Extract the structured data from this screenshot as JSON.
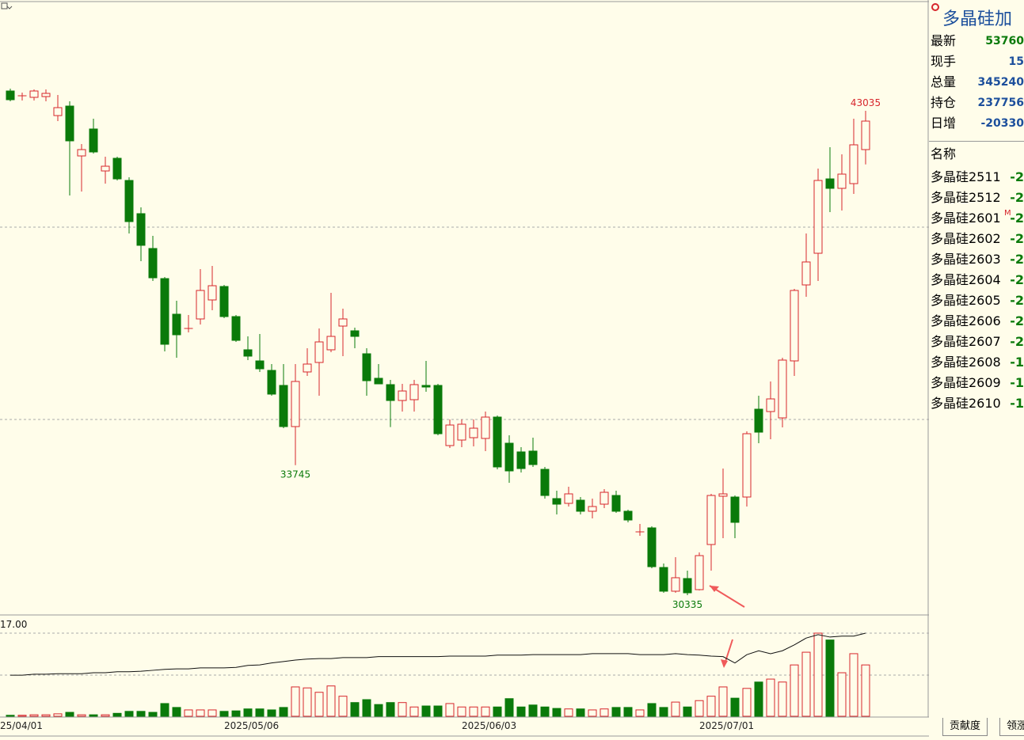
{
  "chart_data": {
    "type": "candlestick",
    "up_color": "#d7262c",
    "down_color": "#0a7a0a",
    "line_color": "#111111",
    "x_start_label": "25/04/01",
    "categories": [
      null,
      null,
      null,
      null,
      null,
      null,
      null,
      null,
      null,
      null,
      null,
      null,
      null,
      null,
      null,
      null,
      null,
      null,
      "2025/05/06",
      null,
      null,
      null,
      null,
      null,
      null,
      null,
      null,
      null,
      null,
      null,
      null,
      null,
      null,
      null,
      null,
      null,
      null,
      null,
      "2025/06/03",
      null,
      null,
      null,
      null,
      null,
      null,
      null,
      null,
      null,
      null,
      null,
      null,
      null,
      null,
      null,
      null,
      null,
      null,
      null,
      "2025/07/01",
      null,
      null,
      null,
      null,
      null,
      null,
      null,
      null,
      null,
      null,
      null,
      null,
      null,
      null
    ],
    "open": [
      43554,
      43429,
      43388,
      43408,
      42910,
      43159,
      41852,
      42558,
      41458,
      41790,
      41209,
      40338,
      39425,
      38636,
      37702,
      37329,
      37578,
      38076,
      38429,
      37640,
      36769,
      36478,
      36229,
      35835,
      34756,
      36188,
      36437,
      36769,
      37391,
      37267,
      36665,
      36022,
      35856,
      35440,
      35461,
      35835,
      35835,
      34258,
      34403,
      34465,
      34445,
      35005,
      34320,
      34092,
      34113,
      33635,
      32868,
      32743,
      32826,
      32536,
      32722,
      32950,
      32536,
      31996,
      32100,
      31062,
      30440,
      30772,
      30481,
      31664,
      32930,
      32909,
      32909,
      35212,
      35150,
      34984,
      36478,
      38470,
      39300,
      41250,
      41002,
      41126,
      42018
    ],
    "high": [
      43616,
      43512,
      43595,
      43595,
      43450,
      43284,
      42164,
      42828,
      41832,
      41832,
      41292,
      40504,
      39757,
      38678,
      38055,
      37682,
      38885,
      38968,
      38470,
      37682,
      37121,
      37184,
      36395,
      36395,
      36395,
      36810,
      37329,
      38263,
      37848,
      37350,
      36810,
      36395,
      35980,
      35876,
      35980,
      36478,
      35876,
      34943,
      34943,
      34943,
      35150,
      35046,
      34528,
      34216,
      34465,
      33698,
      33075,
      33179,
      32909,
      32868,
      33116,
      33075,
      32577,
      32204,
      32141,
      31166,
      31332,
      30980,
      31457,
      32992,
      33656,
      32950,
      34631,
      35565,
      35939,
      36561,
      38366,
      39819,
      41520,
      42081,
      41894,
      42828,
      43035
    ],
    "low": [
      43284,
      43305,
      43305,
      43284,
      42765,
      40815,
      40919,
      41915,
      41126,
      41209,
      39819,
      39093,
      38574,
      36727,
      36561,
      37225,
      37432,
      37806,
      37599,
      36976,
      36499,
      36188,
      35565,
      34714,
      33745,
      36084,
      35565,
      36706,
      36603,
      36810,
      35565,
      35876,
      34744,
      35150,
      35150,
      35669,
      34528,
      34195,
      34216,
      34237,
      34113,
      33635,
      33283,
      33552,
      33698,
      32868,
      32453,
      32660,
      32453,
      32349,
      32619,
      32494,
      32245,
      31892,
      31042,
      30398,
      30398,
      30335,
      30460,
      30980,
      31830,
      31830,
      32660,
      34320,
      34424,
      34735,
      36084,
      38158,
      38574,
      40379,
      40421,
      40855,
      41629
    ],
    "close": [
      43326,
      43429,
      43554,
      43492,
      43118,
      42247,
      42018,
      41956,
      41582,
      41250,
      40130,
      39508,
      38657,
      36914,
      37163,
      37329,
      38325,
      38449,
      37640,
      37017,
      36603,
      36271,
      35607,
      34756,
      35939,
      36395,
      36976,
      37121,
      37578,
      37121,
      35959,
      35876,
      35440,
      35689,
      35856,
      35793,
      34569,
      34797,
      34818,
      34714,
      35005,
      33698,
      33594,
      33656,
      33760,
      32950,
      32722,
      32992,
      32536,
      32660,
      33033,
      32536,
      32307,
      31996,
      31083,
      30440,
      30793,
      30398,
      31373,
      32950,
      32992,
      32245,
      34569,
      34610,
      35482,
      36499,
      38325,
      39072,
      41209,
      41002,
      41375,
      42143,
      42765
    ],
    "volume": [
      0.2,
      0.2,
      0.3,
      0.3,
      0.5,
      0.8,
      0.3,
      0.3,
      0.3,
      0.6,
      1.0,
      1.0,
      0.8,
      2.6,
      1.8,
      1.3,
      1.3,
      1.3,
      1.0,
      1.1,
      1.5,
      1.5,
      1.3,
      1.8,
      6.0,
      5.8,
      4.9,
      6.2,
      4.1,
      2.8,
      3.4,
      2.4,
      2.8,
      2.8,
      1.9,
      2.1,
      2.1,
      2.6,
      1.9,
      1.9,
      1.9,
      1.9,
      3.6,
      1.9,
      2.3,
      1.9,
      1.6,
      1.5,
      1.5,
      1.3,
      1.5,
      1.8,
      1.8,
      1.3,
      2.6,
      1.8,
      2.9,
      1.9,
      3.2,
      4.1,
      6.0,
      3.7,
      5.7,
      7.0,
      7.6,
      7.0,
      10.5,
      13.1,
      17.0,
      15.6,
      8.9,
      12.8,
      10.5
    ],
    "line": [
      8.4,
      8.4,
      8.6,
      8.6,
      8.7,
      8.7,
      8.7,
      8.9,
      8.9,
      9.1,
      9.1,
      9.2,
      9.4,
      9.6,
      9.7,
      9.7,
      9.9,
      9.9,
      9.9,
      10.0,
      10.4,
      10.5,
      10.9,
      11.2,
      11.5,
      11.7,
      11.8,
      11.8,
      12.0,
      12.0,
      12.0,
      12.2,
      12.2,
      12.2,
      12.2,
      12.2,
      12.2,
      12.3,
      12.3,
      12.3,
      12.3,
      12.5,
      12.5,
      12.5,
      12.6,
      12.6,
      12.6,
      12.6,
      12.6,
      12.8,
      12.8,
      12.8,
      12.8,
      12.6,
      12.6,
      12.6,
      12.8,
      12.6,
      12.5,
      12.3,
      12.2,
      10.9,
      12.6,
      13.4,
      12.8,
      13.4,
      14.6,
      16.0,
      16.7,
      16.2,
      16.4,
      16.4,
      17.0
    ],
    "annotations": [
      43035,
      33745,
      30335
    ],
    "ylim": [
      29838,
      45940
    ],
    "vol_ylim": [
      0,
      20.56
    ],
    "vol_yticks": [
      {
        "value": 17,
        "label": "17.00"
      }
    ]
  },
  "quote": {
    "title": "多晶硅加",
    "rows": [
      {
        "label": "最新",
        "value": "53760"
      },
      {
        "label": "现手",
        "value": "15"
      },
      {
        "label": "总量",
        "value": "345240"
      },
      {
        "label": "持仓",
        "value": "237756"
      },
      {
        "label": "日增",
        "value": "-20330"
      }
    ]
  },
  "list": {
    "header": "名称",
    "rows": [
      {
        "name": "多晶硅2511",
        "value": "-2"
      },
      {
        "name": "多晶硅2512",
        "value": "-2"
      },
      {
        "name": "多晶硅2601",
        "value": "-2",
        "flag": "M"
      },
      {
        "name": "多晶硅2602",
        "value": "-2"
      },
      {
        "name": "多晶硅2603",
        "value": "-2"
      },
      {
        "name": "多晶硅2604",
        "value": "-2"
      },
      {
        "name": "多晶硅2605",
        "value": "-2"
      },
      {
        "name": "多晶硅2606",
        "value": "-2"
      },
      {
        "name": "多晶硅2607",
        "value": "-2"
      },
      {
        "name": "多晶硅2608",
        "value": "-1"
      },
      {
        "name": "多晶硅2609",
        "value": "-1"
      },
      {
        "name": "多晶硅2610",
        "value": "-1"
      }
    ]
  },
  "tabs": [
    "贡献度",
    "领涨"
  ]
}
